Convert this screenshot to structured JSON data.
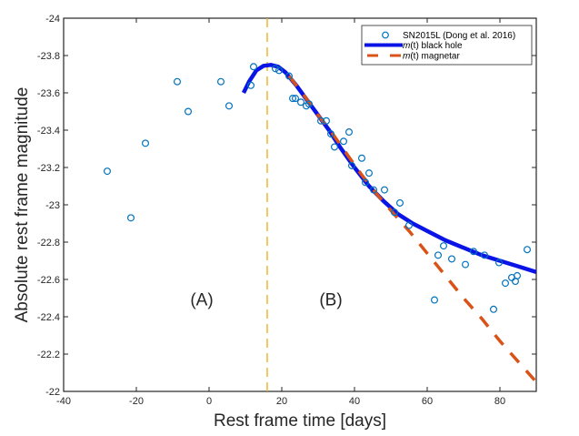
{
  "chart_data": {
    "type": "scatter",
    "title": "",
    "xlabel": "Rest frame time [days]",
    "ylabel": "Absolute rest frame magnitude",
    "xlim": [
      -40,
      90
    ],
    "ylim": [
      -22,
      -24
    ],
    "y_inverted": true,
    "xticks": [
      -40,
      -20,
      0,
      20,
      40,
      60,
      80
    ],
    "xtick_labels": [
      "-40",
      "-20",
      "0",
      "20",
      "40",
      "60",
      "80"
    ],
    "yticks": [
      -24,
      -23.8,
      -23.6,
      -23.4,
      -23.2,
      -23,
      -22.8,
      -22.6,
      -22.4,
      -22.2,
      -22
    ],
    "ytick_labels": [
      "-24",
      "-23.8",
      "-23.6",
      "-23.4",
      "-23.2",
      "-23",
      "-22.8",
      "-22.6",
      "-22.4",
      "-22.2",
      "-22"
    ],
    "grid": false,
    "legend_position": "top-right",
    "series": [
      {
        "name": "SN2015L (Dong et al. 2016)",
        "kind": "scatter",
        "marker": "open-circle",
        "color": "#0072bd",
        "points": [
          [
            -28.0,
            -23.18
          ],
          [
            -21.5,
            -22.93
          ],
          [
            -17.5,
            -23.33
          ],
          [
            -8.75,
            -23.66
          ],
          [
            -5.75,
            -23.5
          ],
          [
            3.25,
            -23.66
          ],
          [
            5.5,
            -23.53
          ],
          [
            11.5,
            -23.64
          ],
          [
            12.25,
            -23.74
          ],
          [
            18.25,
            -23.73
          ],
          [
            19.25,
            -23.72
          ],
          [
            22.0,
            -23.69
          ],
          [
            23.0,
            -23.57
          ],
          [
            23.75,
            -23.57
          ],
          [
            25.25,
            -23.55
          ],
          [
            26.75,
            -23.53
          ],
          [
            27.5,
            -23.54
          ],
          [
            30.75,
            -23.45
          ],
          [
            32.25,
            -23.45
          ],
          [
            33.5,
            -23.38
          ],
          [
            34.5,
            -23.31
          ],
          [
            37.0,
            -23.34
          ],
          [
            38.5,
            -23.39
          ],
          [
            39.25,
            -23.21
          ],
          [
            42.0,
            -23.25
          ],
          [
            43.0,
            -23.12
          ],
          [
            44.0,
            -23.17
          ],
          [
            45.25,
            -23.08
          ],
          [
            48.25,
            -23.08
          ],
          [
            51.0,
            -22.96
          ],
          [
            52.5,
            -23.01
          ],
          [
            55.0,
            -22.89
          ],
          [
            62.0,
            -22.49
          ],
          [
            63.0,
            -22.73
          ],
          [
            64.5,
            -22.78
          ],
          [
            66.75,
            -22.71
          ],
          [
            70.5,
            -22.68
          ],
          [
            72.75,
            -22.75
          ],
          [
            75.75,
            -22.73
          ],
          [
            78.25,
            -22.44
          ],
          [
            79.75,
            -22.69
          ],
          [
            81.5,
            -22.58
          ],
          [
            83.25,
            -22.61
          ],
          [
            84.25,
            -22.59
          ],
          [
            84.75,
            -22.62
          ],
          [
            87.5,
            -22.76
          ]
        ]
      },
      {
        "name": "m(t) black hole",
        "kind": "line",
        "style": "solid",
        "color": "#0a14e6",
        "points": [
          [
            9.5,
            -23.6
          ],
          [
            11,
            -23.66
          ],
          [
            13,
            -23.72
          ],
          [
            15,
            -23.745
          ],
          [
            17,
            -23.75
          ],
          [
            19,
            -23.74
          ],
          [
            21,
            -23.71
          ],
          [
            24,
            -23.64
          ],
          [
            27,
            -23.56
          ],
          [
            30,
            -23.48
          ],
          [
            33,
            -23.4
          ],
          [
            36,
            -23.31
          ],
          [
            40,
            -23.2
          ],
          [
            44,
            -23.1
          ],
          [
            48,
            -23.02
          ],
          [
            52,
            -22.95
          ],
          [
            56,
            -22.9
          ],
          [
            60,
            -22.86
          ],
          [
            65,
            -22.81
          ],
          [
            70,
            -22.77
          ],
          [
            75,
            -22.73
          ],
          [
            80,
            -22.7
          ],
          [
            85,
            -22.67
          ],
          [
            90,
            -22.64
          ]
        ]
      },
      {
        "name": "m(t) magnetar",
        "kind": "line",
        "style": "dashed",
        "color": "#d95319",
        "points": [
          [
            22.0,
            -23.69
          ],
          [
            26,
            -23.59
          ],
          [
            30,
            -23.48
          ],
          [
            34,
            -23.38
          ],
          [
            38,
            -23.27
          ],
          [
            42,
            -23.16
          ],
          [
            46,
            -23.06
          ],
          [
            50,
            -22.97
          ],
          [
            55,
            -22.86
          ],
          [
            60,
            -22.74
          ],
          [
            65,
            -22.62
          ],
          [
            70,
            -22.5
          ],
          [
            75,
            -22.39
          ],
          [
            80,
            -22.27
          ],
          [
            85,
            -22.16
          ],
          [
            90,
            -22.05
          ]
        ]
      }
    ],
    "vertical_line": {
      "x": 16.0,
      "style": "dashed",
      "color": "#edb120"
    },
    "annotations": [
      {
        "text": "(A)",
        "x": -2.0,
        "y": -22.46
      },
      {
        "text": "(B)",
        "x": 33.5,
        "y": -22.46
      }
    ]
  },
  "legend": {
    "entries": [
      {
        "prefix": "",
        "label": "SN2015L (Dong et al. 2016)"
      },
      {
        "prefix": "m",
        "label": "(t) black hole"
      },
      {
        "prefix": "m",
        "label": "(t) magnetar"
      }
    ]
  }
}
